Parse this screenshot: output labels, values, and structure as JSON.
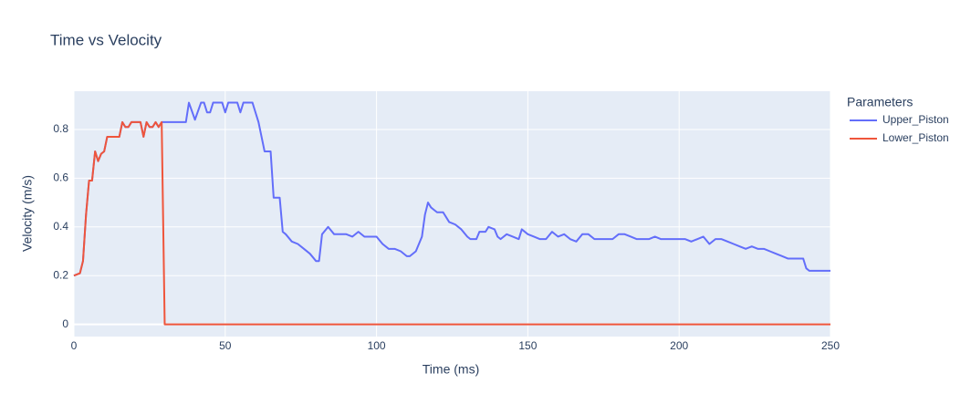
{
  "chart_data": {
    "type": "line",
    "title": "Time vs Velocity",
    "x_label": "Time (ms)",
    "y_label": "Velocity (m/s)",
    "legend_title": "Parameters",
    "legend_position": "right",
    "xlim": [
      0,
      250
    ],
    "xticks": [
      0,
      50,
      100,
      150,
      200,
      250
    ],
    "ylim": [
      -0.05,
      0.957
    ],
    "yticks": [
      0,
      0.2,
      0.4,
      0.6,
      0.8
    ],
    "grid": true,
    "series": [
      {
        "name": "Upper_Piston",
        "color": "#636efa",
        "x": [
          0,
          2,
          3,
          4,
          5,
          6,
          7,
          8,
          9,
          10,
          11,
          15,
          16,
          17,
          18,
          19,
          22,
          23,
          24,
          25,
          26,
          27,
          28,
          29,
          37,
          38,
          40,
          42,
          43,
          44,
          45,
          46,
          49,
          50,
          51,
          54,
          55,
          56,
          59,
          60,
          61,
          62,
          63,
          65,
          66,
          68,
          69,
          70,
          72,
          74,
          76,
          78,
          80,
          81,
          82,
          84,
          86,
          88,
          90,
          92,
          94,
          96,
          98,
          100,
          102,
          104,
          106,
          108,
          110,
          111,
          113,
          115,
          116,
          117,
          118,
          119,
          120,
          122,
          124,
          126,
          128,
          130,
          131,
          133,
          134,
          136,
          137,
          139,
          140,
          141,
          143,
          145,
          147,
          148,
          150,
          152,
          154,
          156,
          158,
          160,
          162,
          164,
          166,
          168,
          170,
          172,
          174,
          176,
          178,
          180,
          182,
          184,
          186,
          188,
          190,
          192,
          194,
          196,
          198,
          200,
          202,
          204,
          206,
          208,
          210,
          212,
          214,
          216,
          218,
          220,
          222,
          224,
          226,
          228,
          230,
          232,
          234,
          236,
          238,
          241,
          242,
          243,
          250
        ],
        "values": [
          0.2,
          0.21,
          0.26,
          0.45,
          0.59,
          0.59,
          0.71,
          0.67,
          0.7,
          0.71,
          0.77,
          0.77,
          0.83,
          0.81,
          0.81,
          0.83,
          0.83,
          0.77,
          0.83,
          0.81,
          0.81,
          0.83,
          0.81,
          0.83,
          0.83,
          0.91,
          0.84,
          0.91,
          0.91,
          0.87,
          0.87,
          0.91,
          0.91,
          0.87,
          0.91,
          0.91,
          0.87,
          0.91,
          0.91,
          0.87,
          0.83,
          0.77,
          0.71,
          0.71,
          0.52,
          0.52,
          0.38,
          0.37,
          0.34,
          0.33,
          0.31,
          0.29,
          0.26,
          0.26,
          0.37,
          0.4,
          0.37,
          0.37,
          0.37,
          0.36,
          0.38,
          0.36,
          0.36,
          0.36,
          0.33,
          0.31,
          0.31,
          0.3,
          0.28,
          0.28,
          0.3,
          0.36,
          0.45,
          0.5,
          0.48,
          0.47,
          0.46,
          0.46,
          0.42,
          0.41,
          0.39,
          0.36,
          0.35,
          0.35,
          0.38,
          0.38,
          0.4,
          0.39,
          0.36,
          0.35,
          0.37,
          0.36,
          0.35,
          0.39,
          0.37,
          0.36,
          0.35,
          0.35,
          0.38,
          0.36,
          0.37,
          0.35,
          0.34,
          0.37,
          0.37,
          0.35,
          0.35,
          0.35,
          0.35,
          0.37,
          0.37,
          0.36,
          0.35,
          0.35,
          0.35,
          0.36,
          0.35,
          0.35,
          0.35,
          0.35,
          0.35,
          0.34,
          0.35,
          0.36,
          0.33,
          0.35,
          0.35,
          0.34,
          0.33,
          0.32,
          0.31,
          0.32,
          0.31,
          0.31,
          0.3,
          0.29,
          0.28,
          0.27,
          0.27,
          0.27,
          0.23,
          0.22,
          0.22
        ]
      },
      {
        "name": "Lower_Piston",
        "color": "#ef553b",
        "x": [
          0,
          2,
          3,
          4,
          5,
          6,
          7,
          8,
          9,
          10,
          11,
          15,
          16,
          17,
          18,
          19,
          22,
          23,
          24,
          25,
          26,
          27,
          28,
          29,
          30,
          250
        ],
        "values": [
          0.2,
          0.21,
          0.26,
          0.45,
          0.59,
          0.59,
          0.71,
          0.67,
          0.7,
          0.71,
          0.77,
          0.77,
          0.83,
          0.81,
          0.81,
          0.83,
          0.83,
          0.77,
          0.83,
          0.81,
          0.81,
          0.83,
          0.81,
          0.83,
          0,
          0
        ]
      }
    ]
  }
}
